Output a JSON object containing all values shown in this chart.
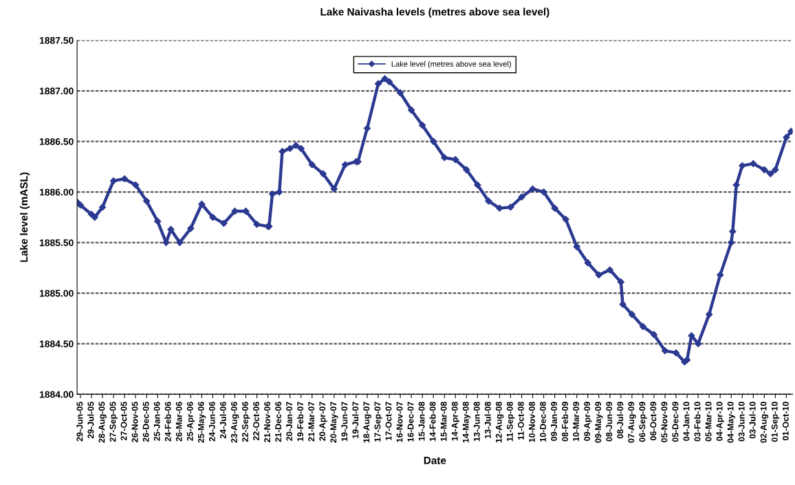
{
  "chart_data": {
    "type": "line",
    "title": "Lake Naivasha levels (metres above sea level)",
    "xlabel": "Date",
    "ylabel": "Lake level (mASL)",
    "x": [
      "2005-06-20",
      "2005-06-29",
      "2005-07-29",
      "2005-08-07",
      "2005-08-28",
      "2005-09-27",
      "2005-10-27",
      "2005-11-26",
      "2005-12-26",
      "2006-01-25",
      "2006-02-17",
      "2006-03-02",
      "2006-03-26",
      "2006-04-25",
      "2006-05-25",
      "2006-06-24",
      "2006-07-24",
      "2006-08-23",
      "2006-09-22",
      "2006-10-22",
      "2006-11-21",
      "2006-11-24",
      "2006-12-03",
      "2006-12-22",
      "2006-12-30",
      "2007-01-20",
      "2007-02-05",
      "2007-02-19",
      "2007-03-21",
      "2007-04-20",
      "2007-05-20",
      "2007-06-19",
      "2007-07-19",
      "2007-07-24",
      "2007-08-18",
      "2007-09-17",
      "2007-10-05",
      "2007-10-17",
      "2007-11-16",
      "2007-12-16",
      "2008-01-15",
      "2008-02-14",
      "2008-03-15",
      "2008-04-14",
      "2008-05-14",
      "2008-06-13",
      "2008-07-13",
      "2008-08-12",
      "2008-09-11",
      "2008-10-11",
      "2008-11-10",
      "2008-12-10",
      "2009-01-09",
      "2009-02-08",
      "2009-03-10",
      "2009-04-09",
      "2009-05-09",
      "2009-06-08",
      "2009-07-08",
      "2009-07-13",
      "2009-08-07",
      "2009-09-06",
      "2009-10-06",
      "2009-11-05",
      "2009-12-05",
      "2009-12-28",
      "2010-01-04",
      "2010-01-16",
      "2010-02-03",
      "2010-03-05",
      "2010-04-04",
      "2010-05-04",
      "2010-05-08",
      "2010-05-18",
      "2010-06-03",
      "2010-07-03",
      "2010-08-02",
      "2010-08-19",
      "2010-09-01",
      "2010-10-01",
      "2010-10-14"
    ],
    "series": [
      {
        "name": "Lake level (metres above sea level)",
        "color": "#2b3990",
        "values": [
          1885.9,
          1885.87,
          1885.78,
          1885.75,
          1885.85,
          1886.11,
          1886.13,
          1886.07,
          1885.91,
          1885.71,
          1885.5,
          1885.63,
          1885.5,
          1885.64,
          1885.88,
          1885.75,
          1885.69,
          1885.81,
          1885.81,
          1885.68,
          1885.66,
          1885.66,
          1885.98,
          1886.0,
          1886.4,
          1886.43,
          1886.46,
          1886.43,
          1886.27,
          1886.18,
          1886.03,
          1886.27,
          1886.3,
          1886.3,
          1886.63,
          1887.07,
          1887.12,
          1887.09,
          1886.98,
          1886.81,
          1886.66,
          1886.5,
          1886.34,
          1886.32,
          1886.22,
          1886.07,
          1885.91,
          1885.84,
          1885.85,
          1885.95,
          1886.03,
          1886.0,
          1885.84,
          1885.73,
          1885.46,
          1885.3,
          1885.18,
          1885.23,
          1885.11,
          1884.89,
          1884.79,
          1884.67,
          1884.59,
          1884.43,
          1884.41,
          1884.32,
          1884.34,
          1884.58,
          1884.5,
          1884.79,
          1885.18,
          1885.5,
          1885.61,
          1886.07,
          1886.26,
          1886.28,
          1886.22,
          1886.18,
          1886.22,
          1886.54,
          1886.6
        ]
      }
    ],
    "xlim": [
      "2005-06-20",
      "2010-10-18"
    ],
    "xticks": [
      {
        "value": "2005-06-29",
        "label": "29-Jun-05"
      },
      {
        "value": "2005-07-29",
        "label": "29-Jul-05"
      },
      {
        "value": "2005-08-28",
        "label": "28-Aug-05"
      },
      {
        "value": "2005-09-27",
        "label": "27-Sep-05"
      },
      {
        "value": "2005-10-27",
        "label": "27-Oct-05"
      },
      {
        "value": "2005-11-26",
        "label": "26-Nov-05"
      },
      {
        "value": "2005-12-26",
        "label": "26-Dec-05"
      },
      {
        "value": "2006-01-25",
        "label": "25-Jan-06"
      },
      {
        "value": "2006-02-24",
        "label": "24-Feb-06"
      },
      {
        "value": "2006-03-26",
        "label": "26-Mar-06"
      },
      {
        "value": "2006-04-25",
        "label": "25-Apr-06"
      },
      {
        "value": "2006-05-25",
        "label": "25-May-06"
      },
      {
        "value": "2006-06-24",
        "label": "24-Jun-06"
      },
      {
        "value": "2006-07-24",
        "label": "24-Jul-06"
      },
      {
        "value": "2006-08-23",
        "label": "23-Aug-06"
      },
      {
        "value": "2006-09-22",
        "label": "22-Sep-06"
      },
      {
        "value": "2006-10-22",
        "label": "22-Oct-06"
      },
      {
        "value": "2006-11-21",
        "label": "21-Nov-06"
      },
      {
        "value": "2006-12-21",
        "label": "21-Dec-06"
      },
      {
        "value": "2007-01-20",
        "label": "20-Jan-07"
      },
      {
        "value": "2007-02-19",
        "label": "19-Feb-07"
      },
      {
        "value": "2007-03-21",
        "label": "21-Mar-07"
      },
      {
        "value": "2007-04-20",
        "label": "20-Apr-07"
      },
      {
        "value": "2007-05-20",
        "label": "20-May-07"
      },
      {
        "value": "2007-06-19",
        "label": "19-Jun-07"
      },
      {
        "value": "2007-07-19",
        "label": "19-Jul-07"
      },
      {
        "value": "2007-08-18",
        "label": "18-Aug-07"
      },
      {
        "value": "2007-09-17",
        "label": "17-Sep-07"
      },
      {
        "value": "2007-10-17",
        "label": "17-Oct-07"
      },
      {
        "value": "2007-11-16",
        "label": "16-Nov-07"
      },
      {
        "value": "2007-12-16",
        "label": "16-Dec-07"
      },
      {
        "value": "2008-01-15",
        "label": "15-Jan-08"
      },
      {
        "value": "2008-02-14",
        "label": "14-Feb-08"
      },
      {
        "value": "2008-03-15",
        "label": "15-Mar-08"
      },
      {
        "value": "2008-04-14",
        "label": "14-Apr-08"
      },
      {
        "value": "2008-05-14",
        "label": "14-May-08"
      },
      {
        "value": "2008-06-13",
        "label": "13-Jun-08"
      },
      {
        "value": "2008-07-13",
        "label": "13-Jul-08"
      },
      {
        "value": "2008-08-12",
        "label": "12-Aug-08"
      },
      {
        "value": "2008-09-11",
        "label": "11-Sep-08"
      },
      {
        "value": "2008-10-11",
        "label": "11-Oct-08"
      },
      {
        "value": "2008-11-10",
        "label": "10-Nov-08"
      },
      {
        "value": "2008-12-10",
        "label": "10-Dec-08"
      },
      {
        "value": "2009-01-09",
        "label": "09-Jan-09"
      },
      {
        "value": "2009-02-08",
        "label": "08-Feb-09"
      },
      {
        "value": "2009-03-10",
        "label": "10-Mar-09"
      },
      {
        "value": "2009-04-09",
        "label": "09-Apr-09"
      },
      {
        "value": "2009-05-09",
        "label": "09-May-09"
      },
      {
        "value": "2009-06-08",
        "label": "08-Jun-09"
      },
      {
        "value": "2009-07-08",
        "label": "08-Jul-09"
      },
      {
        "value": "2009-08-07",
        "label": "07-Aug-09"
      },
      {
        "value": "2009-09-06",
        "label": "06-Sep-09"
      },
      {
        "value": "2009-10-06",
        "label": "06-Oct-09"
      },
      {
        "value": "2009-11-05",
        "label": "05-Nov-09"
      },
      {
        "value": "2009-12-05",
        "label": "05-Dec-09"
      },
      {
        "value": "2010-01-04",
        "label": "04-Jan-10"
      },
      {
        "value": "2010-02-03",
        "label": "03-Feb-10"
      },
      {
        "value": "2010-03-05",
        "label": "05-Mar-10"
      },
      {
        "value": "2010-04-04",
        "label": "04-Apr-10"
      },
      {
        "value": "2010-05-04",
        "label": "04-May-10"
      },
      {
        "value": "2010-06-03",
        "label": "03-Jun-10"
      },
      {
        "value": "2010-07-03",
        "label": "03-Jul-10"
      },
      {
        "value": "2010-08-02",
        "label": "02-Aug-10"
      },
      {
        "value": "2010-09-01",
        "label": "01-Sep-10"
      },
      {
        "value": "2010-10-01",
        "label": "01-Oct-10"
      }
    ],
    "ylim": [
      1884.0,
      1887.5
    ],
    "yticks": [
      {
        "value": 1884.0,
        "label": "1884.00"
      },
      {
        "value": 1884.5,
        "label": "1884.50"
      },
      {
        "value": 1885.0,
        "label": "1885.00"
      },
      {
        "value": 1885.5,
        "label": "1885.50"
      },
      {
        "value": 1886.0,
        "label": "1886.00"
      },
      {
        "value": 1886.5,
        "label": "1886.50"
      },
      {
        "value": 1887.0,
        "label": "1887.00"
      },
      {
        "value": 1887.5,
        "label": "1887.50"
      }
    ],
    "grid": "y",
    "legend": "top",
    "marker": "diamond",
    "line_style": "solid"
  }
}
